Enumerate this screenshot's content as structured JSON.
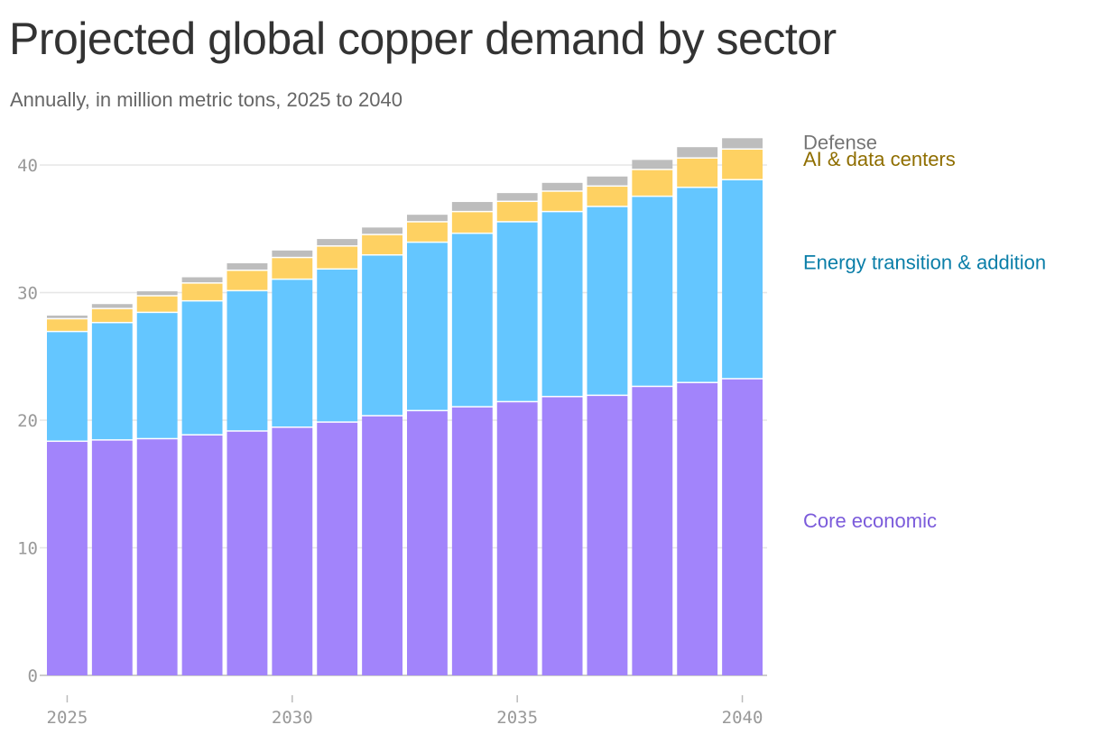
{
  "chart_data": {
    "type": "bar",
    "stacked": true,
    "title": "Projected global copper demand by sector",
    "subtitle": "Annually, in million metric tons, 2025 to 2040",
    "categories": [
      "2025",
      "2026",
      "2027",
      "2028",
      "2029",
      "2030",
      "2031",
      "2032",
      "2033",
      "2034",
      "2035",
      "2036",
      "2037",
      "2038",
      "2039",
      "2040"
    ],
    "series": [
      {
        "name": "Core economic",
        "color": "#a284fb",
        "label_color": "#7b5bdb",
        "values": [
          18.3,
          18.4,
          18.5,
          18.8,
          19.1,
          19.4,
          19.8,
          20.3,
          20.7,
          21.0,
          21.4,
          21.8,
          21.9,
          22.6,
          22.9,
          23.2
        ]
      },
      {
        "name": "Energy transition & addition",
        "color": "#64c6ff",
        "label_color": "#0a7ea8",
        "values": [
          8.6,
          9.2,
          9.9,
          10.5,
          11.0,
          11.6,
          12.0,
          12.6,
          13.2,
          13.6,
          14.1,
          14.5,
          14.8,
          14.9,
          15.3,
          15.6
        ]
      },
      {
        "name": "AI & data centers",
        "color": "#fed162",
        "label_color": "#8f6e00",
        "values": [
          1.0,
          1.1,
          1.3,
          1.4,
          1.6,
          1.7,
          1.8,
          1.6,
          1.6,
          1.7,
          1.6,
          1.6,
          1.6,
          2.1,
          2.3,
          2.4
        ]
      },
      {
        "name": "Defense",
        "color": "#bdbdbd",
        "label_color": "#757575",
        "values": [
          0.3,
          0.4,
          0.4,
          0.5,
          0.6,
          0.6,
          0.6,
          0.6,
          0.6,
          0.8,
          0.7,
          0.7,
          0.8,
          0.8,
          0.9,
          0.9
        ]
      }
    ],
    "ylim": [
      0,
      42
    ],
    "yticks": [
      "0",
      "10",
      "20",
      "30",
      "40"
    ],
    "xticks": [
      "2025",
      "2030",
      "2035",
      "2040"
    ],
    "grid": true,
    "legend_placement": "right, inline with bar stack"
  }
}
